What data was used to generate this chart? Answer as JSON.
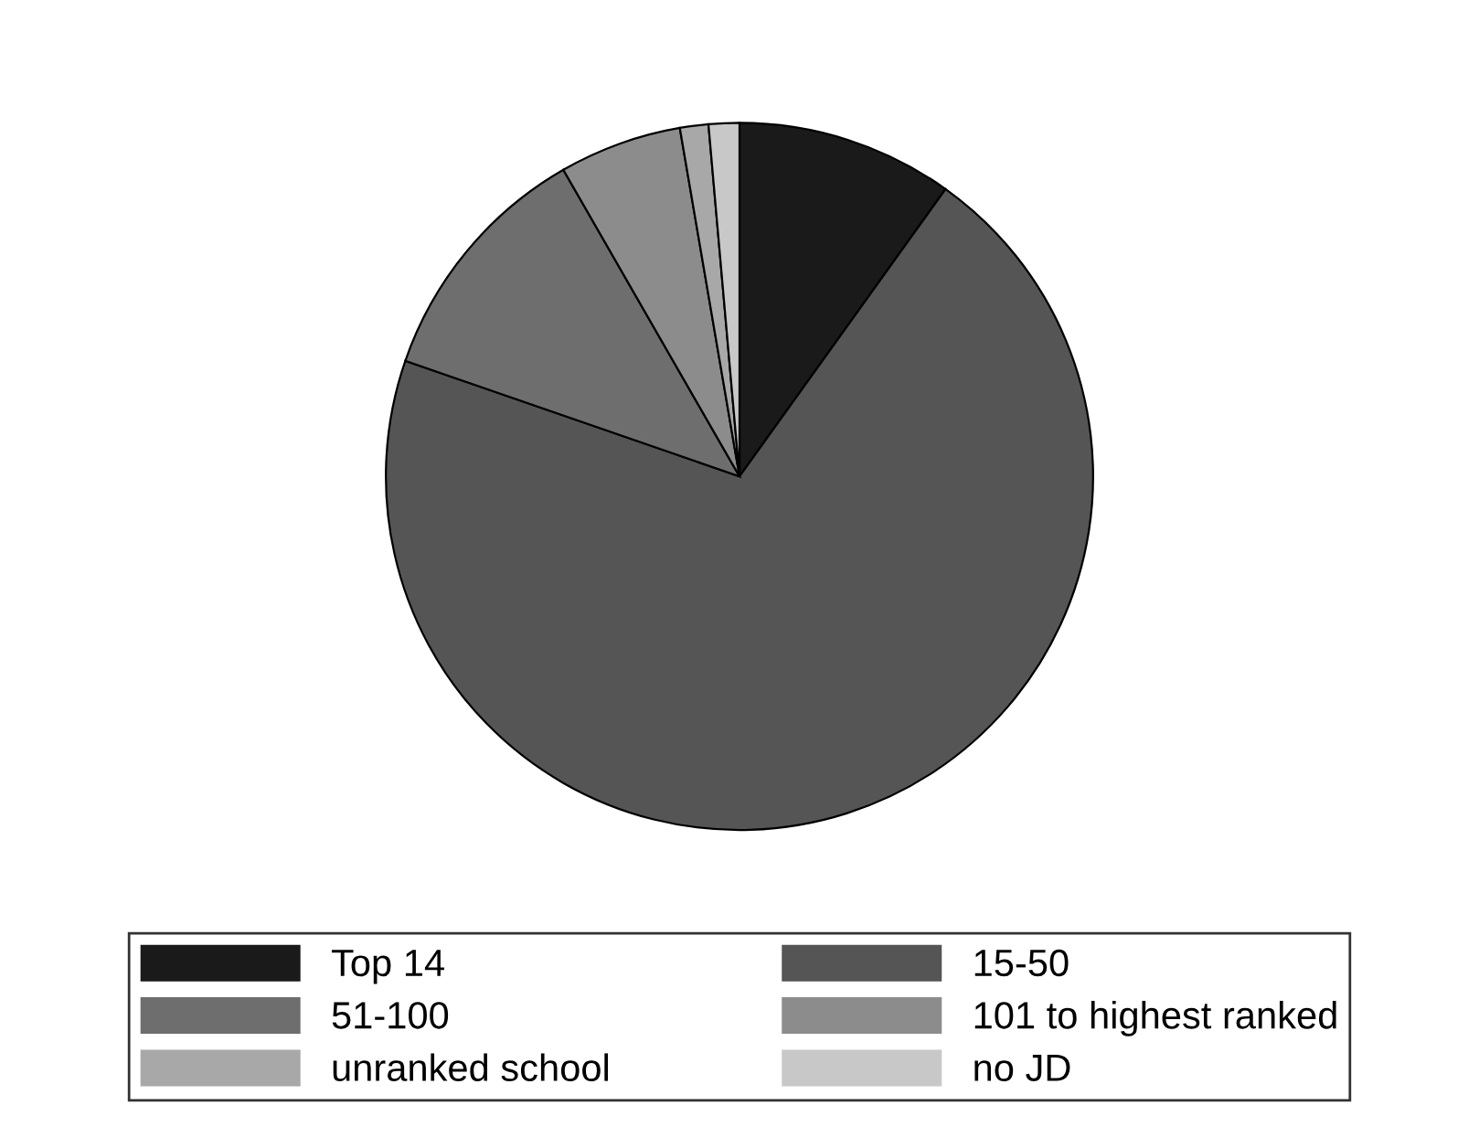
{
  "chart_data": {
    "type": "pie",
    "categories": [
      "Top 14",
      "15-50",
      "51-100",
      "101 to highest ranked",
      "unranked school",
      "no JD"
    ],
    "values": [
      9.9,
      70.4,
      11.4,
      5.6,
      1.3,
      1.4
    ],
    "colors": [
      "#1a1a1a",
      "#555555",
      "#6e6e6e",
      "#8c8c8c",
      "#a8a8a8",
      "#c8c8c8"
    ],
    "legend": "bottom"
  }
}
